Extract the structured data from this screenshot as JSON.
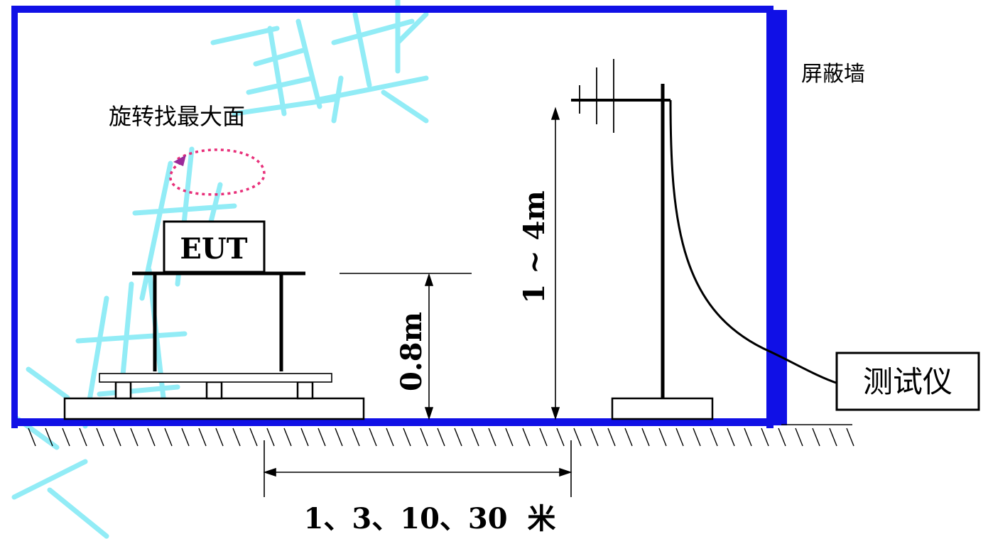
{
  "labels": {
    "shield_wall": "屏蔽墙",
    "rotate_hint": "旋转找最大面",
    "eut": "EUT",
    "table_height": "0.8m",
    "antenna_height": "1 ~ 4m",
    "instrument": "测试仪",
    "distance": "1、3、10、30  米"
  },
  "colors": {
    "wall": "#1010e6",
    "line": "#000000",
    "rotation_arrow": "#e8307a",
    "watermark": "#7fe9f5"
  },
  "icons": {
    "rotation": "dotted-rotation-arrow-icon",
    "ground": "ground-hatch-icon",
    "antenna": "antenna-mast-icon"
  }
}
